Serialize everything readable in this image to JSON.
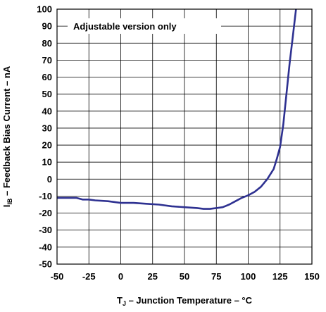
{
  "chart_data": {
    "type": "line",
    "xlabel": {
      "main": "T",
      "sub": "J",
      "rest": " – Junction Temperature – °C"
    },
    "ylabel": {
      "main": "I",
      "sub": "IB",
      "rest": " – Feedback Bias Current – nA"
    },
    "xlim": [
      -50,
      150
    ],
    "ylim": [
      -50,
      100
    ],
    "xticks": [
      "-50",
      "-25",
      "0",
      "25",
      "50",
      "75",
      "100",
      "125",
      "150"
    ],
    "yticks": [
      "100",
      "90",
      "80",
      "70",
      "60",
      "50",
      "40",
      "30",
      "20",
      "10",
      "0",
      "-10",
      "-20",
      "-30",
      "-40",
      "-50"
    ],
    "grid": true,
    "annotation": "Adjustable version only",
    "line_color": "#2e3191",
    "series": [
      {
        "x": [
          -50,
          -40,
          -35,
          -30,
          -25,
          -20,
          -10,
          0,
          10,
          20,
          30,
          40,
          50,
          60,
          65,
          70,
          75,
          80,
          85,
          90,
          95,
          100,
          105,
          110,
          115,
          120,
          122.5,
          125,
          127.5,
          130,
          132.5,
          135,
          137.5
        ],
        "y": [
          -11,
          -11,
          -11,
          -12,
          -12,
          -12.5,
          -13,
          -14,
          -14,
          -14.5,
          -15,
          -16,
          -16.5,
          -17,
          -17.5,
          -17.5,
          -17,
          -16.5,
          -15,
          -13,
          -11,
          -9.5,
          -7.5,
          -4.5,
          0,
          6,
          12,
          19,
          32,
          50,
          68,
          84,
          100
        ]
      }
    ]
  }
}
